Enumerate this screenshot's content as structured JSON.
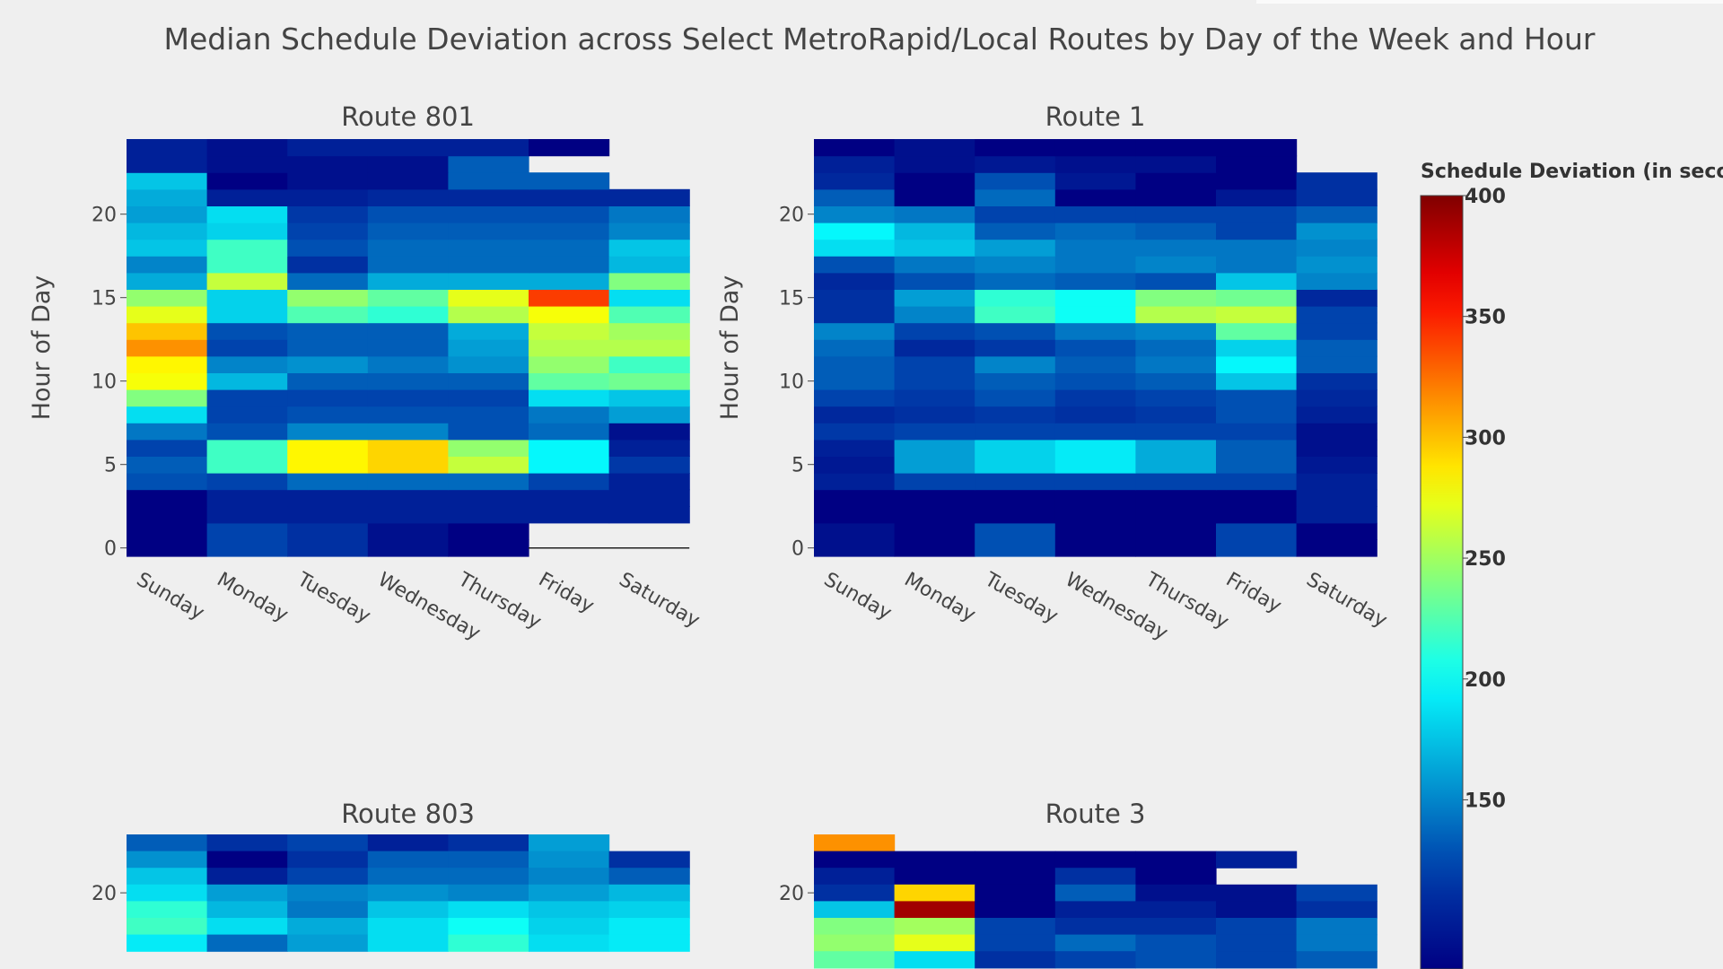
{
  "chart_data": {
    "type": "heatmap",
    "title": "Median Schedule Deviation across Select MetroRapid/Local Routes by Day of the Week and Hour",
    "ylabel": "Hour of Day",
    "colorscale": "jet",
    "zrange": [
      100,
      400
    ],
    "colorbar": {
      "title": "Schedule Deviation (in seconds)",
      "ticks": [
        150,
        200,
        250,
        300,
        350,
        400
      ]
    },
    "x": [
      "Sunday",
      "Monday",
      "Tuesday",
      "Wednesday",
      "Thursday",
      "Friday",
      "Saturday"
    ],
    "y_ticks": [
      0,
      5,
      10,
      15,
      20
    ],
    "subplots": [
      {
        "name": "Route 801",
        "z": [
          [
            60,
            140,
            130,
            110,
            60,
            null,
            null
          ],
          [
            60,
            140,
            130,
            110,
            60,
            null,
            null
          ],
          [
            70,
            120,
            120,
            120,
            120,
            120,
            120
          ],
          [
            70,
            120,
            120,
            120,
            120,
            120,
            120
          ],
          [
            145,
            140,
            155,
            155,
            155,
            140,
            120
          ],
          [
            150,
            230,
            290,
            300,
            270,
            210,
            135
          ],
          [
            140,
            230,
            290,
            300,
            255,
            210,
            120
          ],
          [
            160,
            145,
            165,
            165,
            145,
            155,
            110
          ],
          [
            200,
            140,
            145,
            145,
            145,
            160,
            175
          ],
          [
            250,
            140,
            140,
            140,
            140,
            200,
            190
          ],
          [
            285,
            185,
            150,
            150,
            150,
            240,
            245
          ],
          [
            290,
            165,
            170,
            160,
            170,
            255,
            230
          ],
          [
            320,
            140,
            150,
            150,
            175,
            265,
            265
          ],
          [
            305,
            145,
            150,
            150,
            180,
            270,
            260
          ],
          [
            280,
            195,
            235,
            225,
            265,
            285,
            235
          ],
          [
            255,
            195,
            255,
            240,
            280,
            345,
            200
          ],
          [
            180,
            270,
            155,
            180,
            180,
            180,
            250
          ],
          [
            165,
            230,
            130,
            155,
            155,
            155,
            185
          ],
          [
            190,
            230,
            145,
            155,
            155,
            155,
            190
          ],
          [
            185,
            195,
            140,
            150,
            150,
            150,
            165
          ],
          [
            175,
            200,
            135,
            145,
            145,
            145,
            160
          ],
          [
            180,
            120,
            120,
            125,
            125,
            125,
            125
          ],
          [
            190,
            50,
            110,
            110,
            150,
            150,
            null
          ],
          [
            120,
            110,
            110,
            110,
            150,
            null,
            null
          ],
          [
            120,
            110,
            120,
            120,
            120,
            80,
            null
          ]
        ]
      },
      {
        "name": "Route 1",
        "z": [
          [
            110,
            40,
            145,
            80,
            50,
            140,
            60
          ],
          [
            110,
            40,
            145,
            80,
            50,
            140,
            60
          ],
          [
            100,
            90,
            90,
            95,
            95,
            85,
            120
          ],
          [
            100,
            90,
            90,
            95,
            95,
            85,
            120
          ],
          [
            120,
            140,
            140,
            140,
            140,
            140,
            120
          ],
          [
            115,
            175,
            195,
            205,
            180,
            150,
            115
          ],
          [
            120,
            175,
            195,
            205,
            180,
            150,
            110
          ],
          [
            135,
            140,
            140,
            140,
            140,
            140,
            110
          ],
          [
            125,
            130,
            135,
            130,
            135,
            145,
            120
          ],
          [
            140,
            135,
            145,
            135,
            140,
            145,
            125
          ],
          [
            150,
            140,
            150,
            145,
            150,
            190,
            130
          ],
          [
            150,
            140,
            165,
            150,
            160,
            210,
            150
          ],
          [
            155,
            125,
            135,
            145,
            155,
            195,
            150
          ],
          [
            165,
            140,
            145,
            160,
            165,
            240,
            140
          ],
          [
            130,
            165,
            230,
            215,
            265,
            270,
            140
          ],
          [
            130,
            175,
            225,
            215,
            250,
            245,
            125
          ],
          [
            125,
            145,
            155,
            150,
            145,
            190,
            165
          ],
          [
            145,
            160,
            165,
            160,
            165,
            160,
            170
          ],
          [
            200,
            190,
            175,
            160,
            160,
            160,
            165
          ],
          [
            210,
            185,
            150,
            155,
            150,
            140,
            170
          ],
          [
            165,
            160,
            140,
            140,
            140,
            140,
            150
          ],
          [
            150,
            100,
            155,
            100,
            95,
            115,
            130
          ],
          [
            125,
            90,
            145,
            115,
            100,
            60,
            130
          ],
          [
            120,
            110,
            115,
            110,
            110,
            60,
            null
          ],
          [
            100,
            110,
            100,
            100,
            100,
            80,
            null
          ]
        ]
      },
      {
        "name": "Route 803",
        "z_top": [
          [
            150,
            130,
            140,
            120,
            130,
            175,
            null
          ],
          [
            170,
            30,
            130,
            150,
            150,
            170,
            130
          ],
          [
            190,
            120,
            140,
            155,
            155,
            165,
            150
          ],
          [
            200,
            175,
            165,
            170,
            165,
            175,
            185
          ],
          [
            225,
            185,
            160,
            190,
            200,
            190,
            195
          ],
          [
            230,
            200,
            180,
            200,
            215,
            195,
            205
          ],
          [
            205,
            155,
            175,
            200,
            225,
            200,
            205
          ]
        ]
      },
      {
        "name": "Route 3",
        "z_top": [
          [
            320,
            null,
            null,
            null,
            null,
            null,
            null
          ],
          [
            100,
            80,
            80,
            70,
            60,
            120,
            null
          ],
          [
            120,
            100,
            100,
            130,
            60,
            null,
            null
          ],
          [
            130,
            300,
            100,
            150,
            110,
            110,
            140
          ],
          [
            190,
            390,
            100,
            120,
            120,
            110,
            130
          ],
          [
            250,
            260,
            140,
            130,
            130,
            140,
            160
          ],
          [
            255,
            280,
            140,
            155,
            145,
            140,
            160
          ],
          [
            240,
            200,
            130,
            140,
            145,
            140,
            150
          ]
        ]
      }
    ]
  }
}
